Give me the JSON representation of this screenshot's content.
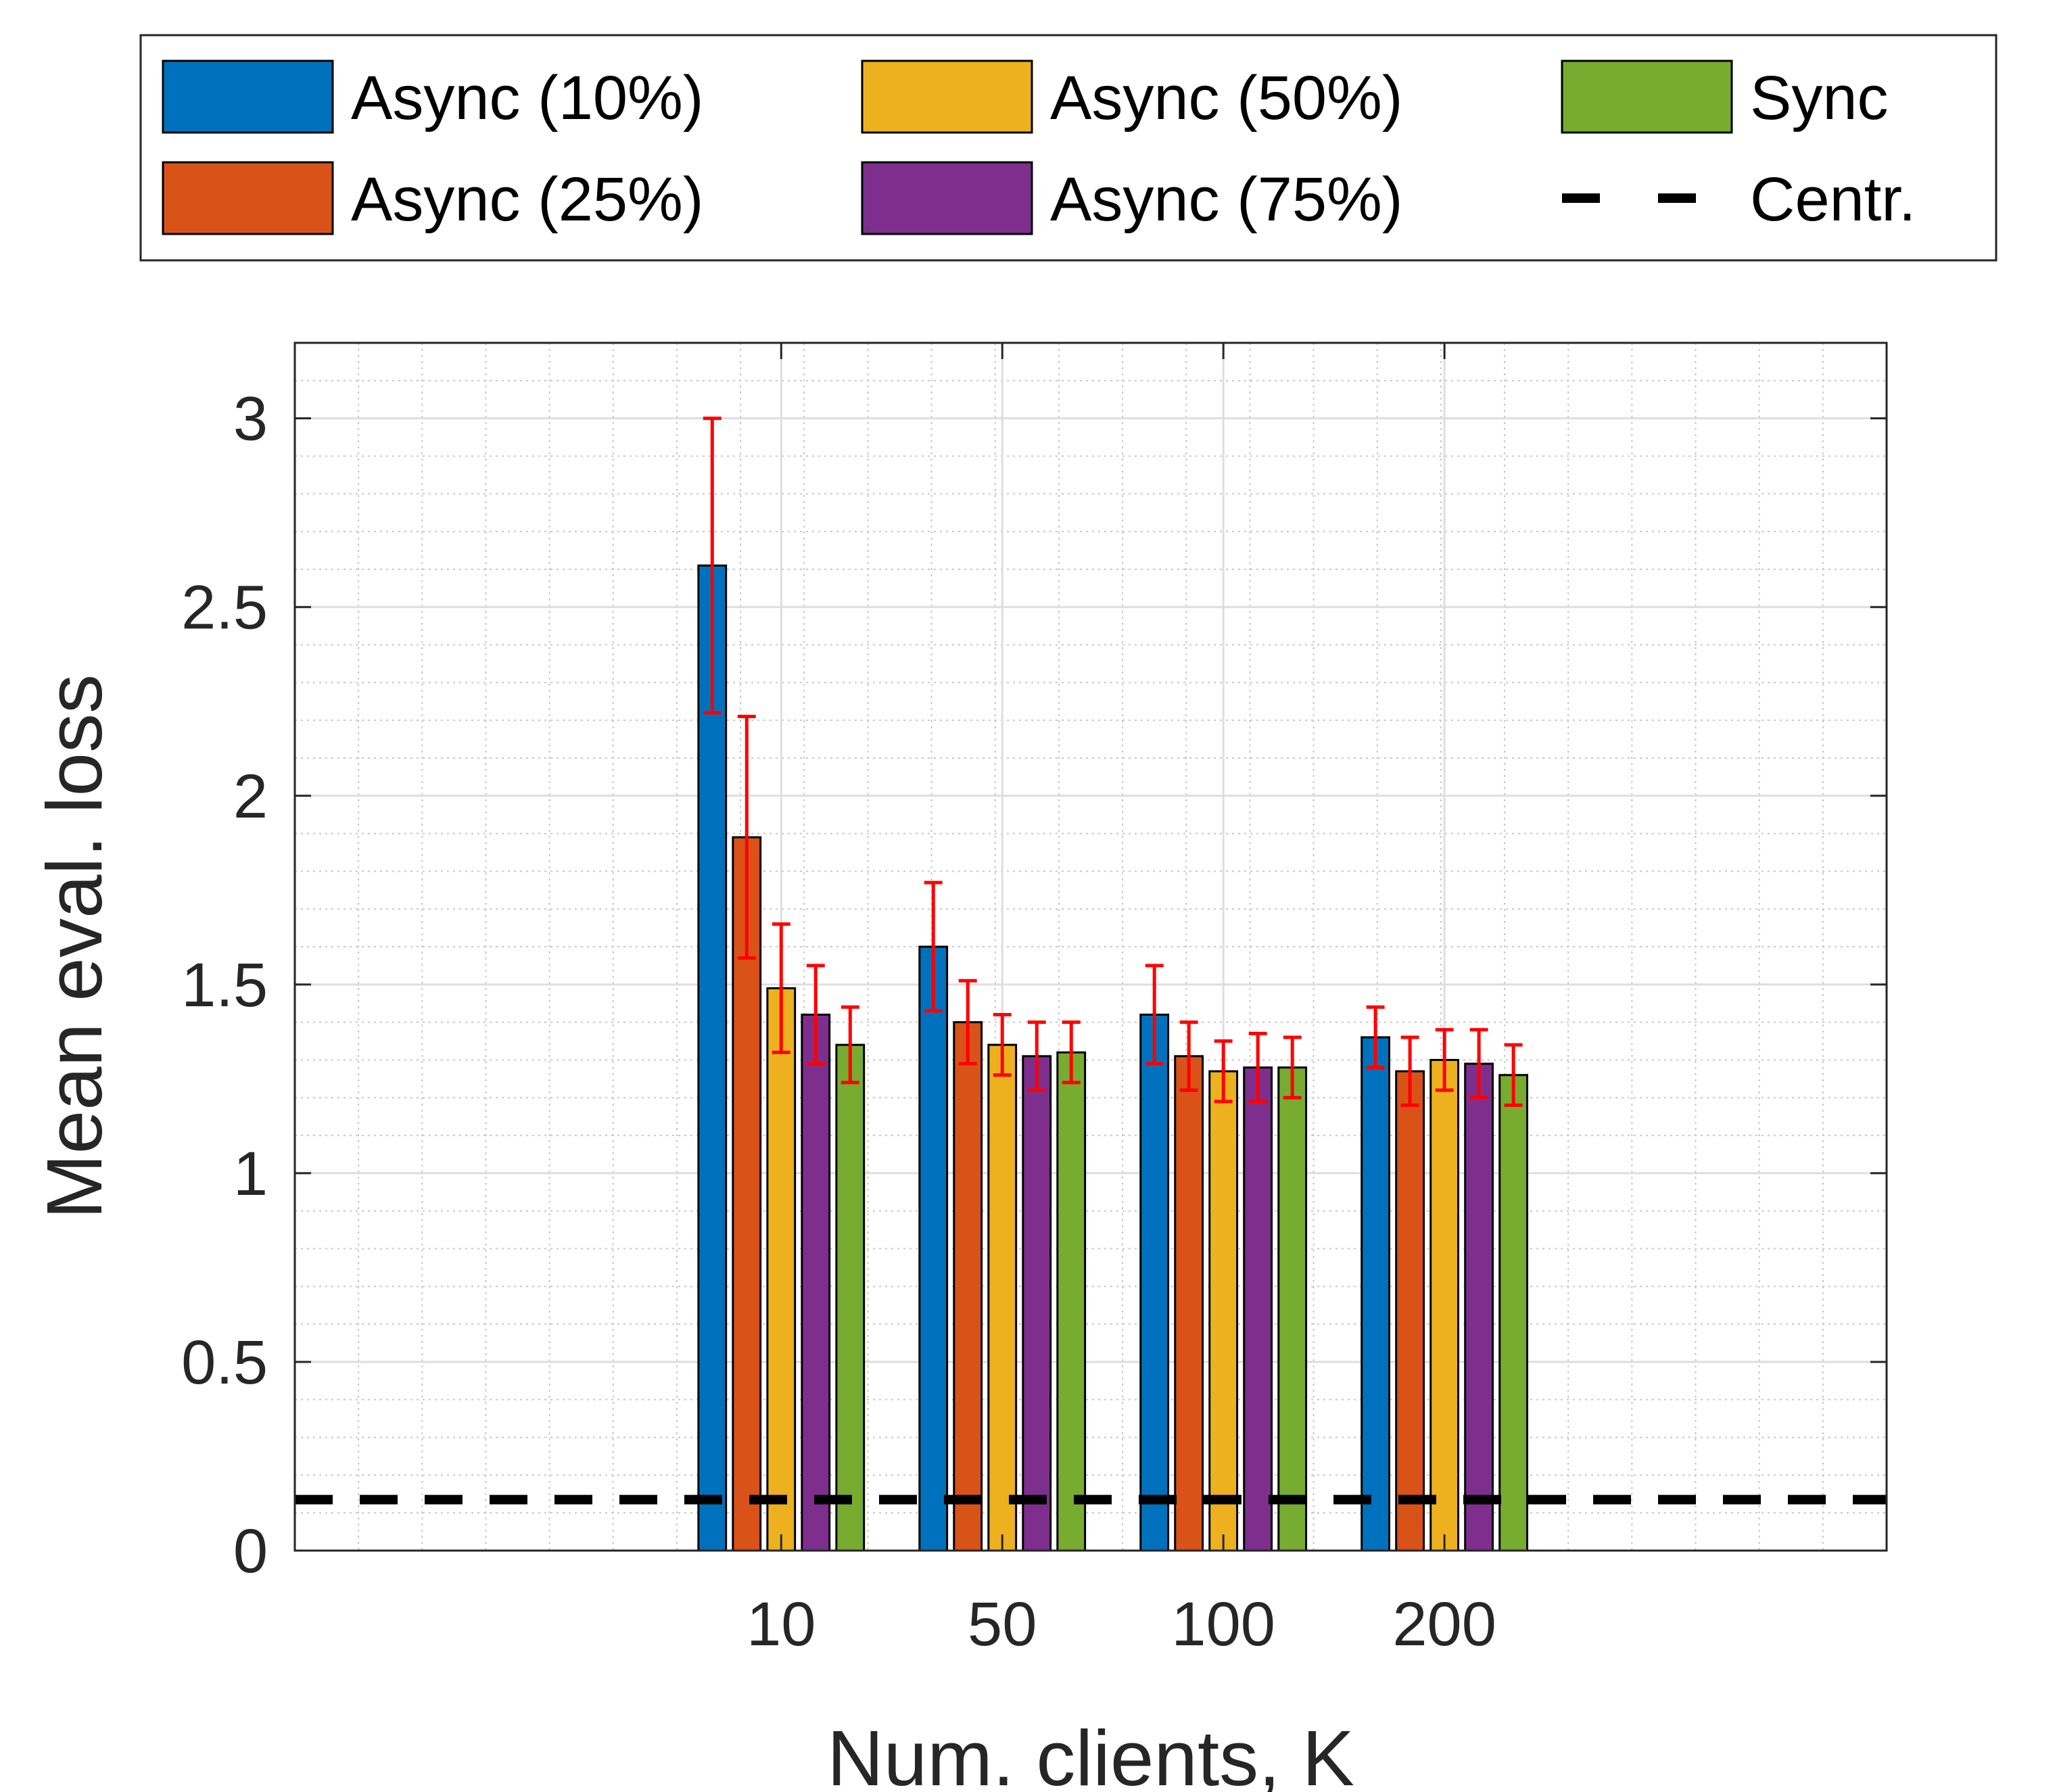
{
  "chart_data": {
    "type": "bar",
    "categories": [
      "10",
      "50",
      "100",
      "200"
    ],
    "xlabel": "Num. clients, K",
    "ylabel": "Mean eval. loss",
    "ylim": [
      0,
      3.2
    ],
    "yticks": [
      "0",
      "0.5",
      "1",
      "1.5",
      "2",
      "2.5",
      "3"
    ],
    "grid": true,
    "legend_position": "top",
    "series": [
      {
        "name": "Async (10%)",
        "color": "#0072BD",
        "values": [
          2.61,
          1.6,
          1.42,
          1.36
        ],
        "errors": [
          0.39,
          0.17,
          0.13,
          0.08
        ]
      },
      {
        "name": "Async (25%)",
        "color": "#D95319",
        "values": [
          1.89,
          1.4,
          1.31,
          1.27
        ],
        "errors": [
          0.32,
          0.11,
          0.09,
          0.09
        ]
      },
      {
        "name": "Async (50%)",
        "color": "#EDB120",
        "values": [
          1.49,
          1.34,
          1.27,
          1.3
        ],
        "errors": [
          0.17,
          0.08,
          0.08,
          0.08
        ]
      },
      {
        "name": "Async (75%)",
        "color": "#7E2F8E",
        "values": [
          1.42,
          1.31,
          1.28,
          1.29
        ],
        "errors": [
          0.13,
          0.09,
          0.09,
          0.09
        ]
      },
      {
        "name": "Sync",
        "color": "#77AC30",
        "values": [
          1.34,
          1.32,
          1.28,
          1.26
        ],
        "errors": [
          0.1,
          0.08,
          0.08,
          0.08
        ]
      }
    ],
    "reference_line": {
      "name": "Centr.",
      "value": 0.135,
      "style": "dashed",
      "color": "#000000"
    },
    "error_bar_color": "#FF0000"
  }
}
